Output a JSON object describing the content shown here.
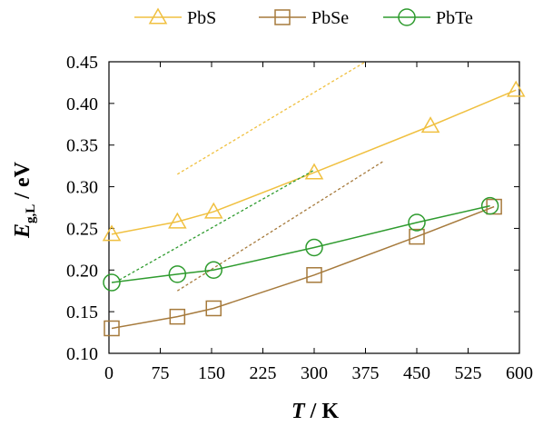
{
  "chart_data": {
    "type": "line",
    "xlabel": {
      "var": "T",
      "unit": " / K"
    },
    "ylabel": {
      "var": "E",
      "sub": "g,L",
      "unit": " / eV"
    },
    "xlim": [
      0,
      600
    ],
    "ylim": [
      0.1,
      0.45
    ],
    "xticks": [
      "0",
      "75",
      "150",
      "225",
      "300",
      "375",
      "450",
      "525",
      "600"
    ],
    "yticks": [
      "0.10",
      "0.15",
      "0.20",
      "0.25",
      "0.30",
      "0.35",
      "0.40",
      "0.45"
    ],
    "grid": false,
    "legend_position": "top",
    "series": [
      {
        "name": "PbS",
        "color": "#F0C040",
        "marker": "triangle",
        "points": [
          [
            4,
            0.243
          ],
          [
            100,
            0.258
          ],
          [
            153,
            0.27
          ],
          [
            300,
            0.317
          ],
          [
            470,
            0.373
          ],
          [
            595,
            0.416
          ]
        ],
        "trend": [
          [
            100,
            0.315
          ],
          [
            375,
            0.45
          ]
        ]
      },
      {
        "name": "PbSe",
        "color": "#A67A3C",
        "marker": "square",
        "points": [
          [
            4,
            0.13
          ],
          [
            100,
            0.144
          ],
          [
            153,
            0.154
          ],
          [
            300,
            0.194
          ],
          [
            450,
            0.24
          ],
          [
            563,
            0.276
          ]
        ],
        "trend": [
          [
            100,
            0.175
          ],
          [
            400,
            0.33
          ]
        ]
      },
      {
        "name": "PbTe",
        "color": "#2E9B2E",
        "marker": "circle",
        "points": [
          [
            4,
            0.185
          ],
          [
            100,
            0.195
          ],
          [
            153,
            0.2
          ],
          [
            300,
            0.227
          ],
          [
            450,
            0.257
          ],
          [
            557,
            0.277
          ]
        ],
        "trend": [
          [
            15,
            0.188
          ],
          [
            300,
            0.32
          ]
        ]
      }
    ]
  }
}
